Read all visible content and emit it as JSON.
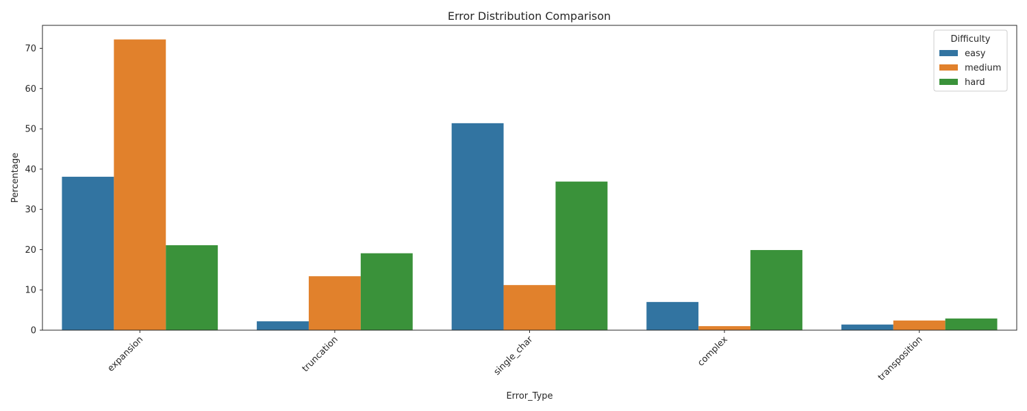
{
  "chart_data": {
    "type": "bar",
    "title": "Error Distribution Comparison",
    "xlabel": "Error_Type",
    "ylabel": "Percentage",
    "categories": [
      "expansion",
      "truncation",
      "single_char",
      "complex",
      "transposition"
    ],
    "series": [
      {
        "name": "easy",
        "color": "#3274a1",
        "values": [
          38.1,
          2.2,
          51.4,
          7.0,
          1.4
        ]
      },
      {
        "name": "medium",
        "color": "#e1812c",
        "values": [
          72.2,
          13.4,
          11.2,
          1.0,
          2.4
        ]
      },
      {
        "name": "hard",
        "color": "#3a923a",
        "values": [
          21.1,
          19.1,
          36.9,
          19.9,
          2.9
        ]
      }
    ],
    "ylim": [
      0,
      75.7
    ],
    "yticks": [
      0,
      10,
      20,
      30,
      40,
      50,
      60,
      70
    ],
    "grid": false,
    "legend": {
      "title": "Difficulty",
      "position": "top-right"
    },
    "xtick_rotation": 45
  }
}
